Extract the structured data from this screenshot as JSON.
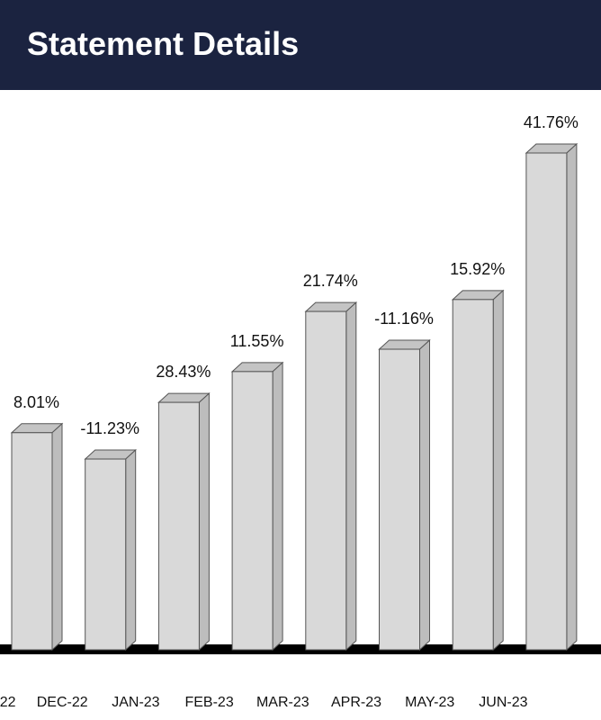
{
  "header": {
    "title": "Statement Details"
  },
  "chart_data": {
    "type": "bar3d",
    "categories": [
      "22",
      "DEC-22",
      "JAN-23",
      "FEB-23",
      "MAR-23",
      "APR-23",
      "MAY-23",
      "JUN-23"
    ],
    "values": [
      43.7,
      38.4,
      49.8,
      56.0,
      68.1,
      60.5,
      70.5,
      100
    ],
    "value_labels": [
      "8.01%",
      "-11.23%",
      "28.43%",
      "11.55%",
      "21.74%",
      "-11.16%",
      "15.92%",
      "41.76%"
    ],
    "color": "#d9d9d9"
  }
}
